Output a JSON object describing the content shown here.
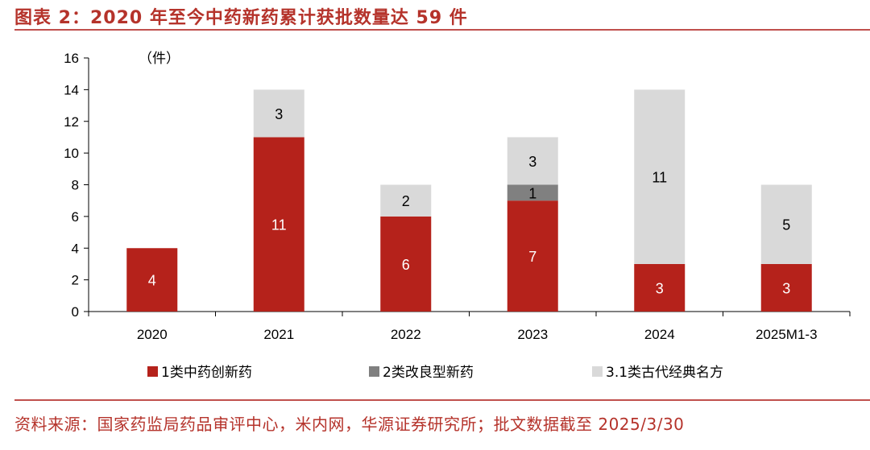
{
  "header": {
    "title": "图表 2：2020 年至今中药新药累计获批数量达 59 件"
  },
  "footer": {
    "source": "资料来源：国家药监局药品审评中心，米内网，华源证券研究所；批文数据截至 2025/3/30"
  },
  "chart_data": {
    "type": "bar",
    "stacked": true,
    "unit_label": "（件）",
    "categories": [
      "2020",
      "2021",
      "2022",
      "2023",
      "2024",
      "2025M1-3"
    ],
    "ylim": [
      0,
      16
    ],
    "yticks": [
      0,
      2,
      4,
      6,
      8,
      10,
      12,
      14,
      16
    ],
    "grid": false,
    "legend_position": "bottom",
    "series": [
      {
        "name": "1类中药创新药",
        "color": "#b5221b",
        "label_color": "#ffffff",
        "values": [
          4,
          11,
          6,
          7,
          3,
          3
        ]
      },
      {
        "name": "2类改良型新药",
        "color": "#808080",
        "label_color": "#000000",
        "values": [
          0,
          0,
          0,
          1,
          0,
          0
        ]
      },
      {
        "name": "3.1类古代经典名方",
        "color": "#d9d9d9",
        "label_color": "#000000",
        "values": [
          0,
          3,
          2,
          3,
          11,
          5
        ]
      }
    ]
  }
}
